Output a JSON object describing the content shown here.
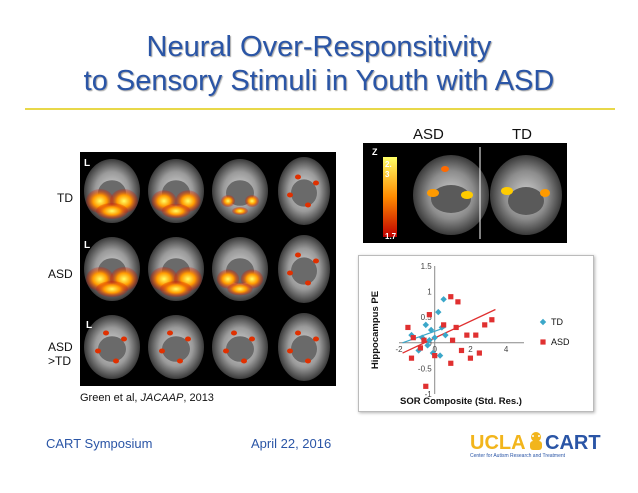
{
  "title_line1": "Neural Over-Responsitivity",
  "title_line2": "to Sensory Stimuli in Youth with ASD",
  "column_labels": {
    "asd": "ASD",
    "td": "TD"
  },
  "row_labels": {
    "td": "TD",
    "asd": "ASD",
    "asd_td_line1": "ASD",
    "asd_td_line2": ">TD"
  },
  "panel_markers": [
    "L",
    "L",
    "L"
  ],
  "colorbar": {
    "label": "Z",
    "max_label_line1": "2.",
    "max_label_line2": "3",
    "min_label": "1.7"
  },
  "citation": {
    "prefix": "Green et al, ",
    "journal": "JACAAP",
    "suffix": ", 2013"
  },
  "footer": {
    "event": "CART Symposium",
    "date": "April 22, 2016"
  },
  "logo": {
    "ucla": "UCLA",
    "cart": "CART",
    "tagline": "Center for Autism Research and Treatment"
  },
  "chart_data": {
    "type": "scatter",
    "xlabel": "SOR Composite (Std. Res.)",
    "ylabel": "Hippocampus PE",
    "xlim": [
      -2,
      5
    ],
    "ylim": [
      -1,
      1.5
    ],
    "xticks": [
      "-2",
      "0",
      "2",
      "4"
    ],
    "yticks": [
      "-1",
      "-0.5",
      "0",
      "0.5",
      "1",
      "1.5"
    ],
    "legend_position": "right",
    "series": [
      {
        "name": "TD",
        "marker": "diamond",
        "color": "#3ba7c9",
        "points": [
          [
            -1.3,
            0.15
          ],
          [
            -0.9,
            -0.15
          ],
          [
            -0.7,
            0.1
          ],
          [
            -0.5,
            0.35
          ],
          [
            -0.4,
            -0.05
          ],
          [
            -0.3,
            0.05
          ],
          [
            -0.2,
            0.25
          ],
          [
            -0.1,
            -0.2
          ],
          [
            0,
            0.1
          ],
          [
            0.2,
            0.6
          ],
          [
            0.4,
            0.3
          ],
          [
            0.6,
            0.15
          ],
          [
            0.5,
            0.85
          ],
          [
            0.3,
            -0.25
          ]
        ]
      },
      {
        "name": "ASD",
        "marker": "square",
        "color": "#e03030",
        "points": [
          [
            -1.5,
            0.3
          ],
          [
            -1.3,
            -0.3
          ],
          [
            -1.2,
            0.1
          ],
          [
            -0.8,
            -0.1
          ],
          [
            -0.6,
            0.05
          ],
          [
            -0.5,
            -0.85
          ],
          [
            -0.3,
            0.55
          ],
          [
            0,
            -0.25
          ],
          [
            0.5,
            0.35
          ],
          [
            0.9,
            0.9
          ],
          [
            1.0,
            0.05
          ],
          [
            1.2,
            0.3
          ],
          [
            1.5,
            -0.15
          ],
          [
            1.8,
            0.15
          ],
          [
            2.0,
            -0.3
          ],
          [
            2.5,
            -0.2
          ],
          [
            2.8,
            0.35
          ],
          [
            3.2,
            0.45
          ],
          [
            2.3,
            0.15
          ],
          [
            0.9,
            -0.4
          ],
          [
            1.3,
            0.8
          ]
        ]
      }
    ],
    "trendlines": [
      {
        "series": "TD",
        "color": "#3ba7c9",
        "from": [
          -1.8,
          0.0
        ],
        "to": [
          0.6,
          0.3
        ]
      },
      {
        "series": "ASD",
        "color": "#e03030",
        "from": [
          -1.8,
          -0.2
        ],
        "to": [
          3.4,
          0.65
        ]
      }
    ]
  }
}
